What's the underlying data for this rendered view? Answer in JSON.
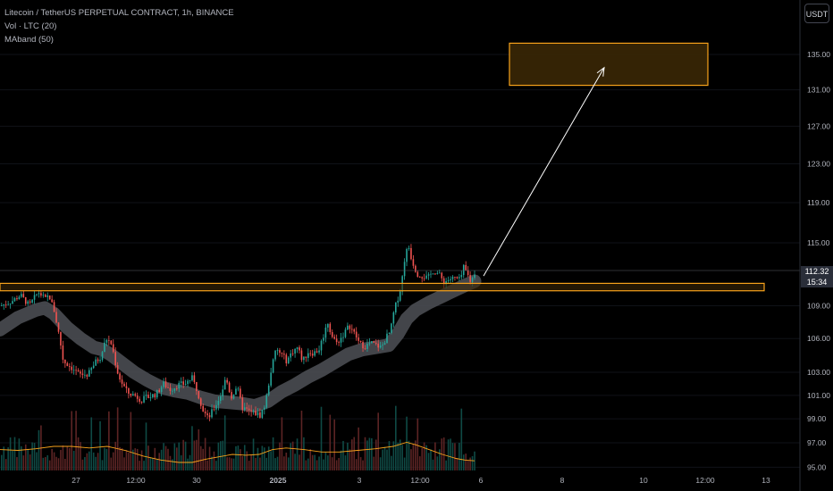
{
  "legend": {
    "symbol": "Litecoin / TetherUS PERPETUAL CONTRACT, 1h, BINANCE",
    "volume": "Vol · LTC (20)",
    "maband": "MAband (50)"
  },
  "currency": "USDT",
  "last_price": {
    "price": "112.32",
    "countdown": "15:34"
  },
  "colors": {
    "up": "#26a69a",
    "down": "#ef5350",
    "zone_fill": "#3a2706",
    "zone_border": "#f7a21b",
    "vol_ma": "#f7a21b",
    "ma_band": "#4a4c52",
    "arrow": "#ffffff",
    "axis_text": "#b2b5be"
  },
  "chart_data": {
    "type": "candlestick",
    "title": "",
    "xlabel": "",
    "ylabel": "",
    "y_scale": "log",
    "ylim": [
      95,
      140
    ],
    "x_ticks": [
      "27",
      "12:00",
      "30",
      "2025",
      "3",
      "12:00",
      "6",
      "8",
      "10",
      "12:00",
      "13"
    ],
    "y_ticks": [
      "135.00",
      "131.00",
      "127.00",
      "123.00",
      "119.00",
      "115.00",
      "109.00",
      "106.00",
      "103.00",
      "101.00",
      "99.00",
      "97.00",
      "95.00"
    ],
    "price_path": [
      [
        0,
        109
      ],
      [
        14,
        109.5
      ],
      [
        22,
        110
      ],
      [
        32,
        109
      ],
      [
        42,
        110.3
      ],
      [
        50,
        109.6
      ],
      [
        54,
        110
      ],
      [
        60,
        108.5
      ],
      [
        66,
        106
      ],
      [
        70,
        104
      ],
      [
        78,
        103.5
      ],
      [
        88,
        102.8
      ],
      [
        98,
        102.8
      ],
      [
        105,
        103.8
      ],
      [
        112,
        104.4
      ],
      [
        118,
        106
      ],
      [
        124,
        105.5
      ],
      [
        130,
        103.2
      ],
      [
        134,
        102.3
      ],
      [
        142,
        101.2
      ],
      [
        150,
        101
      ],
      [
        158,
        100.6
      ],
      [
        166,
        100.9
      ],
      [
        174,
        101.1
      ],
      [
        182,
        102
      ],
      [
        190,
        101.5
      ],
      [
        198,
        101.9
      ],
      [
        206,
        102
      ],
      [
        214,
        102.5
      ],
      [
        220,
        101.4
      ],
      [
        226,
        99.8
      ],
      [
        232,
        99
      ],
      [
        238,
        99.8
      ],
      [
        246,
        101
      ],
      [
        252,
        102.5
      ],
      [
        258,
        100.8
      ],
      [
        264,
        101.8
      ],
      [
        270,
        100
      ],
      [
        278,
        99.6
      ],
      [
        284,
        99.5
      ],
      [
        290,
        99.3
      ],
      [
        296,
        100.2
      ],
      [
        302,
        103
      ],
      [
        308,
        105
      ],
      [
        314,
        104.6
      ],
      [
        320,
        104
      ],
      [
        326,
        104.8
      ],
      [
        332,
        105.2
      ],
      [
        338,
        104
      ],
      [
        344,
        104.8
      ],
      [
        350,
        104.7
      ],
      [
        356,
        105
      ],
      [
        362,
        106.5
      ],
      [
        366,
        107.5
      ],
      [
        370,
        106.3
      ],
      [
        376,
        105.6
      ],
      [
        382,
        106.2
      ],
      [
        390,
        107.2
      ],
      [
        396,
        106.4
      ],
      [
        402,
        105.5
      ],
      [
        408,
        105.3
      ],
      [
        414,
        105.6
      ],
      [
        420,
        105.4
      ],
      [
        426,
        105.2
      ],
      [
        432,
        106.2
      ],
      [
        436,
        106.6
      ],
      [
        440,
        108.5
      ],
      [
        444,
        109.6
      ],
      [
        448,
        110.8
      ],
      [
        452,
        113.5
      ],
      [
        456,
        114.8
      ],
      [
        460,
        113.3
      ],
      [
        466,
        112
      ],
      [
        472,
        111.8
      ],
      [
        478,
        111.6
      ],
      [
        484,
        112.3
      ],
      [
        490,
        112
      ],
      [
        496,
        111.2
      ],
      [
        502,
        111.5
      ],
      [
        508,
        111.6
      ],
      [
        514,
        111.4
      ],
      [
        518,
        112.6
      ],
      [
        522,
        112
      ],
      [
        526,
        111.2
      ],
      [
        531,
        112.3
      ]
    ],
    "ma_band_path": [
      [
        0,
        106.8
      ],
      [
        20,
        107.9
      ],
      [
        40,
        108.6
      ],
      [
        50,
        108.8
      ],
      [
        60,
        108.3
      ],
      [
        75,
        107
      ],
      [
        90,
        106
      ],
      [
        105,
        105.2
      ],
      [
        115,
        105
      ],
      [
        125,
        104.5
      ],
      [
        135,
        103.9
      ],
      [
        150,
        103
      ],
      [
        165,
        102.3
      ],
      [
        180,
        101.7
      ],
      [
        195,
        101.4
      ],
      [
        210,
        101.2
      ],
      [
        225,
        100.8
      ],
      [
        240,
        100.5
      ],
      [
        255,
        100.4
      ],
      [
        270,
        100.3
      ],
      [
        285,
        100.1
      ],
      [
        300,
        100.5
      ],
      [
        315,
        101.3
      ],
      [
        330,
        101.9
      ],
      [
        345,
        102.6
      ],
      [
        360,
        103.2
      ],
      [
        375,
        103.9
      ],
      [
        390,
        104.6
      ],
      [
        405,
        105
      ],
      [
        420,
        105.2
      ],
      [
        435,
        105.4
      ],
      [
        445,
        106.4
      ],
      [
        455,
        107.8
      ],
      [
        465,
        108.6
      ],
      [
        480,
        109.3
      ],
      [
        495,
        109.9
      ],
      [
        510,
        110.5
      ],
      [
        520,
        110.9
      ],
      [
        531,
        111.3
      ]
    ],
    "volume_ma_path": [
      [
        0,
        0.26
      ],
      [
        20,
        0.25
      ],
      [
        40,
        0.27
      ],
      [
        60,
        0.3
      ],
      [
        80,
        0.3
      ],
      [
        100,
        0.28
      ],
      [
        120,
        0.3
      ],
      [
        140,
        0.25
      ],
      [
        160,
        0.18
      ],
      [
        180,
        0.13
      ],
      [
        200,
        0.1
      ],
      [
        215,
        0.1
      ],
      [
        230,
        0.14
      ],
      [
        245,
        0.17
      ],
      [
        260,
        0.2
      ],
      [
        275,
        0.19
      ],
      [
        290,
        0.2
      ],
      [
        305,
        0.26
      ],
      [
        320,
        0.28
      ],
      [
        340,
        0.26
      ],
      [
        360,
        0.23
      ],
      [
        380,
        0.23
      ],
      [
        400,
        0.25
      ],
      [
        420,
        0.27
      ],
      [
        440,
        0.3
      ],
      [
        455,
        0.35
      ],
      [
        465,
        0.32
      ],
      [
        480,
        0.26
      ],
      [
        495,
        0.2
      ],
      [
        510,
        0.15
      ],
      [
        520,
        0.13
      ],
      [
        531,
        0.12
      ]
    ],
    "support_zone": {
      "low": 110.4,
      "high": 111.1
    },
    "target_zone": {
      "low": 131.5,
      "high": 136.3
    },
    "projection": {
      "from": 111.8,
      "to": 133.5
    }
  }
}
